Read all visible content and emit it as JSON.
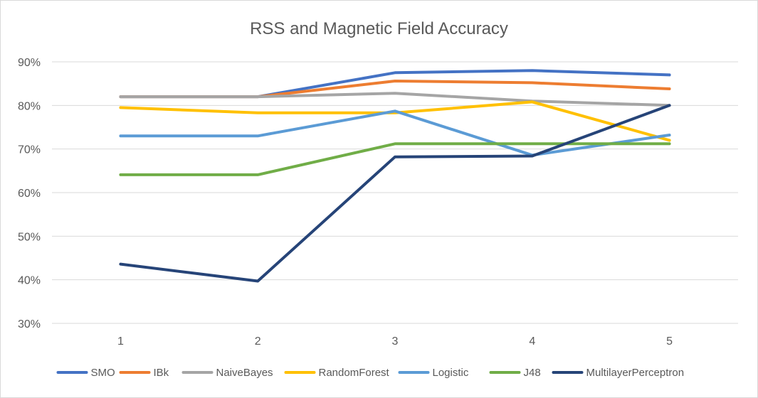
{
  "chart_data": {
    "type": "line",
    "title": "RSS and Magnetic Field Accuracy",
    "xlabel": "",
    "ylabel": "",
    "categories": [
      "1",
      "2",
      "3",
      "4",
      "5"
    ],
    "ylim": [
      0.3,
      0.9
    ],
    "yticks": [
      "30%",
      "40%",
      "50%",
      "60%",
      "70%",
      "80%",
      "90%"
    ],
    "grid": true,
    "legend_position": "bottom",
    "series": [
      {
        "name": "SMO",
        "color": "#4472C4",
        "values": [
          0.82,
          0.82,
          0.875,
          0.88,
          0.87
        ]
      },
      {
        "name": "IBk",
        "color": "#ED7D31",
        "values": [
          0.82,
          0.82,
          0.856,
          0.852,
          0.838
        ]
      },
      {
        "name": "NaiveBayes",
        "color": "#A5A5A5",
        "values": [
          0.82,
          0.82,
          0.828,
          0.81,
          0.8
        ]
      },
      {
        "name": "RandomForest",
        "color": "#FFC000",
        "values": [
          0.795,
          0.783,
          0.783,
          0.808,
          0.72
        ]
      },
      {
        "name": "Logistic",
        "color": "#5B9BD5",
        "values": [
          0.73,
          0.73,
          0.787,
          0.686,
          0.732
        ]
      },
      {
        "name": "J48",
        "color": "#70AD47",
        "values": [
          0.641,
          0.641,
          0.712,
          0.712,
          0.712
        ]
      },
      {
        "name": "MultilayerPerceptron",
        "color": "#264478",
        "values": [
          0.436,
          0.397,
          0.682,
          0.684,
          0.8
        ]
      }
    ]
  }
}
